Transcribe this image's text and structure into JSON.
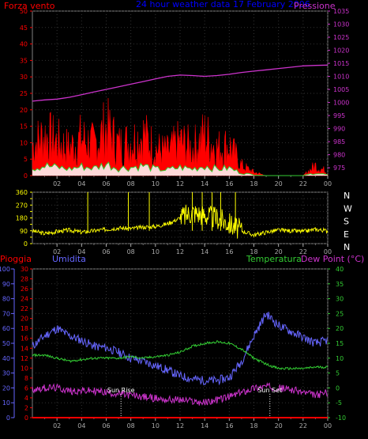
{
  "header": {
    "left_title": "Forza vento",
    "center_title": "24 hour weather data 17 February 2006",
    "right_title": "Pressione"
  },
  "colors": {
    "wind": "#ff0000",
    "gust_fill": "#ffffff",
    "gust_line": "#33cc33",
    "pressure": "#cc33cc",
    "direction": "#ffff00",
    "rain": "#ff0000",
    "humidity": "#6666ff",
    "temperature": "#33cc33",
    "dewpoint": "#cc33cc"
  },
  "chart_data": [
    {
      "type": "area",
      "name": "wind-pressure",
      "title": "Forza vento / Pressione",
      "x_ticks": [
        "02",
        "04",
        "06",
        "08",
        "10",
        "12",
        "14",
        "16",
        "18",
        "20",
        "22",
        "00"
      ],
      "left_axis": {
        "label": "Forza vento",
        "ylim": [
          0,
          50
        ],
        "ticks": [
          0,
          5,
          10,
          15,
          20,
          25,
          30,
          35,
          40,
          45,
          50
        ]
      },
      "right_axis": {
        "label": "Pressione",
        "ylim": [
          972,
          1035
        ],
        "ticks": [
          975,
          980,
          985,
          990,
          995,
          1000,
          1005,
          1010,
          1015,
          1020,
          1025,
          1030,
          1035
        ]
      },
      "series": [
        {
          "name": "Forza vento",
          "axis": "left",
          "x_hours": [
            0,
            1,
            2,
            3,
            4,
            5,
            6,
            7,
            8,
            9,
            10,
            11,
            12,
            13,
            14,
            15,
            16,
            17,
            18,
            19,
            20,
            21,
            22,
            23,
            24
          ],
          "values": [
            9,
            12,
            10,
            8,
            11,
            9,
            14,
            9,
            10,
            12,
            8,
            7,
            10,
            8,
            12,
            8,
            9,
            3,
            1,
            0,
            0,
            0,
            0,
            3,
            1
          ]
        },
        {
          "name": "Pressione",
          "axis": "right",
          "x_hours": [
            0,
            1,
            2,
            3,
            4,
            5,
            6,
            7,
            8,
            9,
            10,
            11,
            12,
            13,
            14,
            15,
            16,
            17,
            18,
            19,
            20,
            21,
            22,
            23,
            24
          ],
          "values": [
            1000.5,
            1001,
            1001.3,
            1002,
            1003,
            1004,
            1005,
            1006,
            1007,
            1008,
            1009,
            1010,
            1010.5,
            1010.3,
            1010,
            1010.3,
            1010.8,
            1011.5,
            1012,
            1012.5,
            1013,
            1013.5,
            1014,
            1014.2,
            1014.3
          ]
        }
      ]
    },
    {
      "type": "line",
      "name": "wind-direction",
      "x_ticks": [
        "02",
        "04",
        "06",
        "08",
        "10",
        "12",
        "14",
        "16",
        "18",
        "20",
        "22",
        "00"
      ],
      "left_axis": {
        "ylim": [
          0,
          360
        ],
        "ticks": [
          0,
          45,
          90,
          135,
          180,
          225,
          270,
          315,
          360
        ]
      },
      "right_labels": [
        "N",
        "W",
        "S",
        "E",
        "N"
      ],
      "series": [
        {
          "name": "direction",
          "x_hours": [
            0,
            1,
            2,
            3,
            4,
            5,
            6,
            7,
            8,
            9,
            10,
            11,
            12,
            13,
            14,
            15,
            16,
            17,
            18,
            19,
            20,
            21,
            22,
            23,
            24
          ],
          "values": [
            90,
            70,
            85,
            95,
            80,
            90,
            100,
            110,
            105,
            115,
            120,
            140,
            180,
            220,
            200,
            180,
            140,
            90,
            60,
            80,
            95,
            90,
            85,
            100,
            90
          ]
        }
      ]
    },
    {
      "type": "line",
      "name": "humidity-temperature",
      "x_ticks": [
        "02",
        "04",
        "06",
        "08",
        "10",
        "12",
        "14",
        "16",
        "18",
        "20",
        "22",
        "00"
      ],
      "legend": [
        "Pioggia",
        "Umidita",
        "Temperatura",
        "Dew Point (°C)"
      ],
      "axis_humidity": {
        "label": "Umidita",
        "ylim": [
          0,
          100
        ],
        "ticks": [
          0,
          10,
          20,
          30,
          40,
          50,
          60,
          70,
          80,
          90,
          100
        ]
      },
      "axis_rain": {
        "label": "Pioggia",
        "ylim": [
          0,
          30
        ],
        "ticks": [
          0,
          2,
          4,
          6,
          8,
          10,
          12,
          14,
          16,
          18,
          20,
          22,
          24,
          26,
          28,
          30
        ]
      },
      "axis_temp": {
        "label": "Temperatura / Dew Point (°C)",
        "ylim": [
          -10,
          40
        ],
        "ticks": [
          -10,
          -5,
          0,
          5,
          10,
          15,
          20,
          25,
          30,
          35,
          40
        ]
      },
      "annotations": [
        {
          "label": "Sun Rise",
          "hour": 7.2
        },
        {
          "label": "Sun Set",
          "hour": 19.3
        }
      ],
      "series": [
        {
          "name": "Umidita",
          "axis": "humidity",
          "x_hours": [
            0,
            1,
            2,
            3,
            4,
            5,
            6,
            7,
            8,
            9,
            10,
            11,
            12,
            13,
            14,
            15,
            16,
            17,
            18,
            19,
            20,
            21,
            22,
            23,
            24
          ],
          "values": [
            48,
            55,
            60,
            55,
            52,
            48,
            47,
            44,
            40,
            38,
            35,
            32,
            28,
            26,
            25,
            25,
            27,
            38,
            55,
            70,
            62,
            58,
            54,
            50,
            52
          ]
        },
        {
          "name": "Temperatura",
          "axis": "temp",
          "x_hours": [
            0,
            1,
            2,
            3,
            4,
            5,
            6,
            7,
            8,
            9,
            10,
            11,
            12,
            13,
            14,
            15,
            16,
            17,
            18,
            19,
            20,
            21,
            22,
            23,
            24
          ],
          "values": [
            11,
            11,
            10,
            9,
            9.5,
            10,
            10,
            10,
            10.5,
            10,
            10.5,
            11,
            12,
            14,
            15,
            15.5,
            15,
            13,
            10,
            8,
            6.5,
            6.5,
            6.5,
            7,
            7
          ]
        },
        {
          "name": "Dew Point (°C)",
          "axis": "temp",
          "x_hours": [
            0,
            1,
            2,
            3,
            4,
            5,
            6,
            7,
            8,
            9,
            10,
            11,
            12,
            13,
            14,
            15,
            16,
            17,
            18,
            19,
            20,
            21,
            22,
            23,
            24
          ],
          "values": [
            -0.5,
            0,
            0,
            -1,
            -1,
            -1,
            -1.5,
            -2,
            -2.5,
            -3,
            -3.5,
            -4,
            -4,
            -4.5,
            -5,
            -4,
            -3,
            -1.5,
            0,
            0.5,
            0,
            -0.5,
            -1.5,
            -2.5,
            -1.5
          ]
        },
        {
          "name": "Pioggia",
          "axis": "rain",
          "x_hours": [
            0,
            24
          ],
          "values": [
            0,
            0
          ]
        }
      ]
    }
  ]
}
